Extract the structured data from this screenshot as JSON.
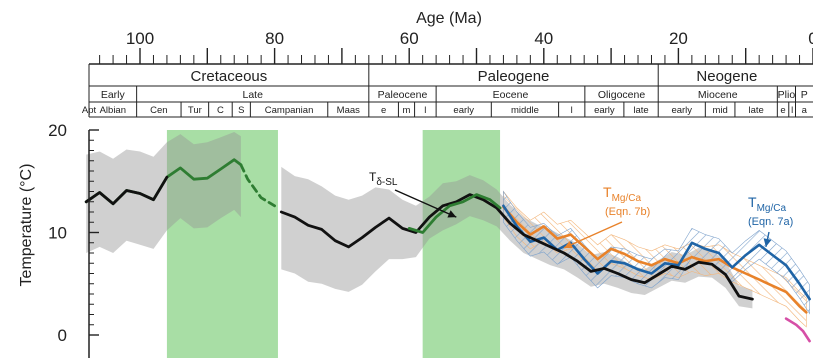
{
  "chart_data": {
    "type": "line",
    "top_axis": {
      "label": "Age (Ma)",
      "range": [
        115,
        0
      ],
      "ticks": [
        100,
        80,
        60,
        40,
        20,
        0
      ],
      "tick_labels": [
        "100",
        "80",
        "60",
        "40",
        "20",
        "0"
      ]
    },
    "ylabel": "Temperature (°C)",
    "ylim": [
      -2,
      20.5
    ],
    "yticks": [
      0,
      10,
      20
    ],
    "ytick_labels": [
      "0",
      "10",
      "20"
    ],
    "periods": [
      {
        "name": "Cretaceous",
        "from": 115,
        "to": 66
      },
      {
        "name": "Paleogene",
        "from": 66,
        "to": 23
      },
      {
        "name": "Neogene",
        "from": 23,
        "to": 2.6
      }
    ],
    "epochs": [
      {
        "name": "Early",
        "from": 115,
        "to": 100.5
      },
      {
        "name": "Late",
        "from": 100.5,
        "to": 66
      },
      {
        "name": "Paleocene",
        "from": 66,
        "to": 56
      },
      {
        "name": "Eocene",
        "from": 56,
        "to": 33.9
      },
      {
        "name": "Oligocene",
        "from": 33.9,
        "to": 23
      },
      {
        "name": "Miocene",
        "from": 23,
        "to": 5.3
      },
      {
        "name": "Plio",
        "from": 5.3,
        "to": 2.6
      },
      {
        "name": "P",
        "from": 2.6,
        "to": 0
      }
    ],
    "stages": [
      {
        "name": "Apt",
        "from": 115,
        "to": 113
      },
      {
        "name": "Albian",
        "from": 113,
        "to": 100.5
      },
      {
        "name": "Cen",
        "from": 100.5,
        "to": 93.9
      },
      {
        "name": "Tur",
        "from": 93.9,
        "to": 89.8
      },
      {
        "name": "C",
        "from": 89.8,
        "to": 86.3
      },
      {
        "name": "S",
        "from": 86.3,
        "to": 83.6
      },
      {
        "name": "Campanian",
        "from": 83.6,
        "to": 72.1
      },
      {
        "name": "Maas",
        "from": 72.1,
        "to": 66
      },
      {
        "name": "e",
        "from": 66,
        "to": 61.6
      },
      {
        "name": "m",
        "from": 61.6,
        "to": 59.2
      },
      {
        "name": "l",
        "from": 59.2,
        "to": 56
      },
      {
        "name": "early",
        "from": 56,
        "to": 47.8
      },
      {
        "name": "middle",
        "from": 47.8,
        "to": 37.8
      },
      {
        "name": "l",
        "from": 37.8,
        "to": 33.9
      },
      {
        "name": "early",
        "from": 33.9,
        "to": 28.1
      },
      {
        "name": "late",
        "from": 28.1,
        "to": 23
      },
      {
        "name": "early",
        "from": 23,
        "to": 16
      },
      {
        "name": "mid",
        "from": 16,
        "to": 11.6
      },
      {
        "name": "late",
        "from": 11.6,
        "to": 5.3
      },
      {
        "name": "e",
        "from": 5.3,
        "to": 3.6
      },
      {
        "name": "l",
        "from": 3.6,
        "to": 2.6
      },
      {
        "name": "a",
        "from": 2.6,
        "to": 0
      }
    ],
    "shaded_intervals": [
      [
        96,
        79.5
      ],
      [
        58,
        46.5
      ]
    ],
    "series": [
      {
        "name": "Tδ-SL",
        "color": "#111111",
        "x": [
          108,
          106,
          104,
          102,
          100,
          98,
          96,
          94,
          92,
          90,
          88,
          86,
          85
        ],
        "y": [
          13.0,
          13.9,
          12.8,
          14.1,
          13.8,
          13.2,
          15.4,
          16.3,
          15.2,
          15.3,
          16.2,
          17.1,
          16.6
        ],
        "y_lower": [
          8.0,
          8.6,
          8.0,
          9.2,
          8.8,
          8.4,
          10.2,
          11.4,
          10.4,
          10.5,
          11.4,
          12.2,
          11.5
        ],
        "y_upper": [
          17.6,
          17.9,
          17.2,
          18.1,
          17.9,
          17.4,
          18.8,
          19.6,
          18.6,
          18.8,
          19.3,
          19.8,
          19.4
        ]
      },
      {
        "name": "Tδ-SL (dashed)",
        "color": "#111111",
        "x": [
          85,
          84,
          82,
          80
        ],
        "y": [
          16.6,
          15.2,
          13.4,
          12.6
        ]
      },
      {
        "name": "Tδ-SL (continued)",
        "color": "#111111",
        "x": [
          79,
          77,
          75,
          73,
          71,
          69,
          67,
          65,
          63,
          61,
          59,
          57,
          55,
          53,
          51,
          49,
          47,
          45,
          43,
          41,
          39,
          37,
          35,
          33,
          31,
          29,
          27,
          25,
          23,
          21,
          19,
          17,
          15,
          13,
          11,
          9
        ],
        "y": [
          12.0,
          11.5,
          10.7,
          10.3,
          9.2,
          8.6,
          9.5,
          10.5,
          11.4,
          10.4,
          10.0,
          11.5,
          12.6,
          13.0,
          13.7,
          13.2,
          12.4,
          10.9,
          9.8,
          9.2,
          8.6,
          8.0,
          7.2,
          6.2,
          6.5,
          6.0,
          5.4,
          5.1,
          5.9,
          6.7,
          6.4,
          7.1,
          6.9,
          5.9,
          3.8,
          3.5
        ],
        "y_lower": [
          6.4,
          6.0,
          5.2,
          5.0,
          4.5,
          4.2,
          4.9,
          6.2,
          7.4,
          7.4,
          7.6,
          9.4,
          10.2,
          10.8,
          11.6,
          11.2,
          10.6,
          9.2,
          8.0,
          7.4,
          6.8,
          6.4,
          5.6,
          4.7,
          5.0,
          4.6,
          4.1,
          3.9,
          4.6,
          5.3,
          5.1,
          5.7,
          5.6,
          4.6,
          2.8,
          2.6
        ],
        "y_upper": [
          16.4,
          15.5,
          15.2,
          14.5,
          13.6,
          13.2,
          13.6,
          14.4,
          14.2,
          13.2,
          12.6,
          13.5,
          14.8,
          15.0,
          15.6,
          15.1,
          14.2,
          12.7,
          11.5,
          10.8,
          10.3,
          9.6,
          8.9,
          7.8,
          8.1,
          7.6,
          6.8,
          6.4,
          7.3,
          8.1,
          7.8,
          8.5,
          8.3,
          7.2,
          4.8,
          4.4
        ]
      },
      {
        "name": "TMg/Ca (Eqn. 7b)",
        "color": "#e8822a",
        "x": [
          46,
          44,
          42,
          40,
          38,
          36,
          34,
          32,
          30,
          28,
          26,
          24,
          22,
          20,
          18,
          16,
          14,
          12,
          10,
          8,
          6,
          4,
          2,
          1
        ],
        "y": [
          12.5,
          11.0,
          9.8,
          10.6,
          9.4,
          9.8,
          8.6,
          7.4,
          8.4,
          7.9,
          7.2,
          6.8,
          7.4,
          7.0,
          7.6,
          7.2,
          7.4,
          6.6,
          6.0,
          5.4,
          4.8,
          4.2,
          2.8,
          2.2
        ],
        "y_lower": [
          11.5,
          9.6,
          8.4,
          9.2,
          8.0,
          8.4,
          7.2,
          6.0,
          7.0,
          6.5,
          5.8,
          5.4,
          6.0,
          5.6,
          6.2,
          5.8,
          6.0,
          5.2,
          4.6,
          4.0,
          3.4,
          2.8,
          1.4,
          0.8
        ],
        "y_upper": [
          14.0,
          12.4,
          11.2,
          12.0,
          10.8,
          11.2,
          10.0,
          8.8,
          9.8,
          9.3,
          8.6,
          8.2,
          8.8,
          8.4,
          9.0,
          8.6,
          8.8,
          8.0,
          7.4,
          6.8,
          6.2,
          5.6,
          4.2,
          3.6
        ]
      },
      {
        "name": "TMg/Ca (Eqn. 7a)",
        "color": "#1f64a6",
        "x": [
          46,
          44,
          42,
          40,
          38,
          36,
          34,
          32,
          30,
          28,
          26,
          24,
          22,
          20,
          18,
          16,
          14,
          12,
          10,
          8,
          6,
          4,
          2,
          0.5
        ],
        "y": [
          12.6,
          10.6,
          9.1,
          9.5,
          8.3,
          9.0,
          7.4,
          6.0,
          7.2,
          7.0,
          6.4,
          6.0,
          7.0,
          6.8,
          9.0,
          8.4,
          8.0,
          6.6,
          7.8,
          8.8,
          7.8,
          6.8,
          5.0,
          3.5
        ],
        "y_lower": [
          11.0,
          9.2,
          7.7,
          8.1,
          6.9,
          7.6,
          6.0,
          4.6,
          5.8,
          5.6,
          5.0,
          4.6,
          5.6,
          5.4,
          7.6,
          7.0,
          6.6,
          5.2,
          6.4,
          7.4,
          6.4,
          5.4,
          3.6,
          2.1
        ],
        "y_upper": [
          14.0,
          12.0,
          10.5,
          10.9,
          9.7,
          10.4,
          8.8,
          7.4,
          8.6,
          8.4,
          7.8,
          7.4,
          8.4,
          8.2,
          10.4,
          9.8,
          9.4,
          8.0,
          9.2,
          10.2,
          9.2,
          8.2,
          6.4,
          4.9
        ]
      },
      {
        "name": "pink segment",
        "color": "#d64fa6",
        "x": [
          4,
          2.5,
          1.5,
          0.5
        ],
        "y": [
          1.6,
          1.0,
          0.4,
          -0.6
        ]
      },
      {
        "name": "green shaded segment",
        "color": "#2e7d32",
        "x": [
          96,
          94,
          92,
          90,
          88,
          86,
          85,
          60,
          58,
          56,
          54,
          52,
          50,
          48,
          46.5
        ],
        "y": [
          15.4,
          16.3,
          15.2,
          15.3,
          16.2,
          17.1,
          16.6,
          10.4,
          10.0,
          11.5,
          12.6,
          13.0,
          13.7,
          13.2,
          12.4
        ]
      }
    ],
    "annotations": [
      {
        "main": "T",
        "sub": "δ-SL",
        "color": "#111111",
        "arrow_to": [
          53,
          11.5
        ]
      },
      {
        "main": "T",
        "sub": "Mg/Ca",
        "paren": "(Eqn. 7b)",
        "color": "#e8822a",
        "arrow_to": [
          37,
          8.5
        ]
      },
      {
        "main": "T",
        "sub": "Mg/Ca",
        "paren": "(Eqn. 7a)",
        "color": "#1f64a6",
        "arrow_to": [
          7,
          8.6
        ]
      }
    ]
  }
}
